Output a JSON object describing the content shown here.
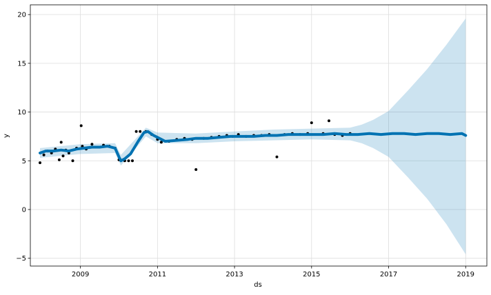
{
  "chart_data": {
    "type": "line",
    "title": "",
    "xlabel": "ds",
    "ylabel": "y",
    "x_range": [
      2007.7,
      2019.55
    ],
    "ylim": [
      -5.8,
      21.0
    ],
    "grid": true,
    "x_ticks": [
      {
        "value": 2009,
        "label": "2009"
      },
      {
        "value": 2011,
        "label": "2011"
      },
      {
        "value": 2013,
        "label": "2013"
      },
      {
        "value": 2015,
        "label": "2015"
      },
      {
        "value": 2017,
        "label": "2017"
      },
      {
        "value": 2019,
        "label": "2019"
      }
    ],
    "y_ticks": [
      {
        "value": -5,
        "label": "−5"
      },
      {
        "value": 0,
        "label": "0"
      },
      {
        "value": 5,
        "label": "5"
      },
      {
        "value": 10,
        "label": "10"
      },
      {
        "value": 15,
        "label": "15"
      },
      {
        "value": 20,
        "label": "20"
      }
    ],
    "colors": {
      "forecast": "#0072b2",
      "interval": "#0072b2",
      "observed": "#000000",
      "grid": "#dddddd"
    },
    "series": [
      {
        "kind": "forecast",
        "x": [
          2007.95,
          2008.1,
          2008.3,
          2008.5,
          2008.7,
          2008.9,
          2009.1,
          2009.3,
          2009.5,
          2009.7,
          2009.9,
          2010.0,
          2010.05,
          2010.15,
          2010.3,
          2010.5,
          2010.65,
          2010.75,
          2010.9,
          2011.0,
          2011.2,
          2011.5,
          2011.8,
          2012.0,
          2012.3,
          2012.6,
          2012.9,
          2013.2,
          2013.5,
          2013.8,
          2014.1,
          2014.4,
          2014.7,
          2015.0,
          2015.3,
          2015.6,
          2015.9,
          2016.2,
          2016.5,
          2016.8,
          2017.1,
          2017.4,
          2017.7,
          2018.0,
          2018.3,
          2018.6,
          2018.9,
          2019.0
        ],
        "values": [
          5.8,
          6.0,
          6.0,
          6.1,
          6.0,
          6.2,
          6.3,
          6.4,
          6.4,
          6.5,
          6.3,
          5.4,
          5.0,
          5.2,
          5.7,
          7.0,
          7.9,
          8.0,
          7.6,
          7.4,
          7.0,
          7.1,
          7.2,
          7.3,
          7.3,
          7.4,
          7.5,
          7.5,
          7.5,
          7.6,
          7.6,
          7.7,
          7.7,
          7.7,
          7.7,
          7.8,
          7.7,
          7.7,
          7.8,
          7.7,
          7.8,
          7.8,
          7.7,
          7.8,
          7.8,
          7.7,
          7.8,
          7.6
        ]
      },
      {
        "kind": "uncertainty_upper",
        "x": [
          2007.95,
          2009.0,
          2009.9,
          2010.05,
          2010.7,
          2011.0,
          2012.0,
          2013.0,
          2014.0,
          2015.0,
          2016.0,
          2016.3,
          2016.6,
          2017.0,
          2017.5,
          2018.0,
          2018.5,
          2019.0
        ],
        "values": [
          6.3,
          6.7,
          6.8,
          5.6,
          8.4,
          7.9,
          7.8,
          8.0,
          8.2,
          8.3,
          8.4,
          8.7,
          9.2,
          10.1,
          12.2,
          14.4,
          16.9,
          19.6
        ]
      },
      {
        "kind": "uncertainty_lower",
        "x": [
          2007.95,
          2009.0,
          2009.9,
          2010.05,
          2010.7,
          2011.0,
          2012.0,
          2013.0,
          2014.0,
          2015.0,
          2016.0,
          2016.3,
          2016.6,
          2017.0,
          2017.5,
          2018.0,
          2018.5,
          2019.0
        ],
        "values": [
          5.3,
          5.7,
          5.8,
          4.5,
          7.5,
          6.8,
          6.8,
          7.0,
          7.1,
          7.2,
          7.1,
          6.8,
          6.3,
          5.4,
          3.3,
          1.1,
          -1.5,
          -4.6
        ]
      },
      {
        "kind": "observed",
        "x": [
          2007.95,
          2008.05,
          2008.15,
          2008.25,
          2008.35,
          2008.45,
          2008.5,
          2008.55,
          2008.62,
          2008.7,
          2008.8,
          2008.9,
          2009.02,
          2009.05,
          2009.15,
          2009.3,
          2009.45,
          2009.6,
          2009.75,
          2009.9,
          2010.0,
          2010.15,
          2010.25,
          2010.35,
          2010.45,
          2010.55,
          2010.7,
          2010.85,
          2011.0,
          2011.1,
          2011.3,
          2011.5,
          2011.7,
          2011.9,
          2012.0,
          2012.2,
          2012.4,
          2012.6,
          2012.8,
          2012.95,
          2013.1,
          2013.3,
          2013.5,
          2013.7,
          2013.9,
          2014.1,
          2014.3,
          2014.5,
          2014.7,
          2014.9,
          2015.0,
          2015.3,
          2015.45,
          2015.6,
          2015.8,
          2016.0
        ],
        "values": [
          4.8,
          5.6,
          6.0,
          5.8,
          6.2,
          5.1,
          6.9,
          5.5,
          6.1,
          5.8,
          5.0,
          6.3,
          8.6,
          6.5,
          6.2,
          6.7,
          6.4,
          6.6,
          6.5,
          6.3,
          5.1,
          5.0,
          5.0,
          5.0,
          8.0,
          8.0,
          8.0,
          7.7,
          7.2,
          6.9,
          7.0,
          7.2,
          7.3,
          7.2,
          4.1,
          7.3,
          7.4,
          7.5,
          7.6,
          7.5,
          7.7,
          7.5,
          7.6,
          7.6,
          7.7,
          5.4,
          7.7,
          7.8,
          7.7,
          7.8,
          8.9,
          7.8,
          9.1,
          7.7,
          7.6,
          7.8
        ]
      }
    ]
  }
}
